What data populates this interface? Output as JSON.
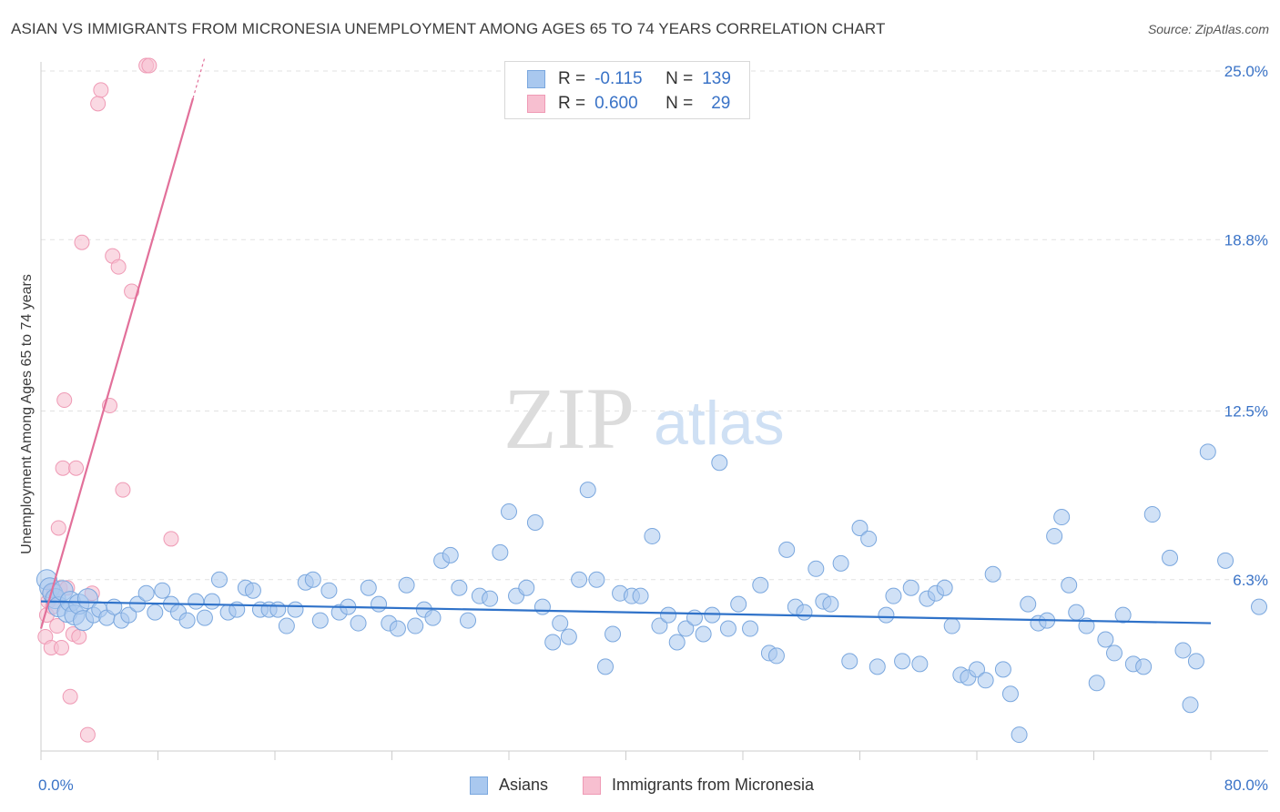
{
  "header": {
    "title": "ASIAN VS IMMIGRANTS FROM MICRONESIA UNEMPLOYMENT AMONG AGES 65 TO 74 YEARS CORRELATION CHART",
    "source": "Source: ZipAtlas.com"
  },
  "watermark": {
    "zip": "ZIP",
    "atlas": "atlas"
  },
  "colors": {
    "blue_fill": "#a9c8ef",
    "blue_stroke": "#7aa7de",
    "blue_line": "#2f72c9",
    "pink_fill": "#f7bfd0",
    "pink_stroke": "#ef9ab5",
    "pink_line": "#e2709a",
    "tick_label": "#3a73c7",
    "grid": "#e2e2e2"
  },
  "legend_top": {
    "rows": [
      {
        "r_label": "R =",
        "r_value": "-0.115",
        "n_label": "N =",
        "n_value": "139",
        "color": "#a9c8ef"
      },
      {
        "r_label": "R =",
        "r_value": "0.600",
        "n_label": "N =",
        "n_value": "29",
        "color": "#f7bfd0"
      }
    ]
  },
  "legend_bottom": {
    "items": [
      {
        "label": "Asians",
        "color": "#a9c8ef"
      },
      {
        "label": "Immigrants from Micronesia",
        "color": "#f7bfd0"
      }
    ]
  },
  "chart_data": {
    "type": "scatter",
    "title": "ASIAN VS IMMIGRANTS FROM MICRONESIA UNEMPLOYMENT AMONG AGES 65 TO 74 YEARS CORRELATION CHART",
    "xlabel": "",
    "ylabel": "Unemployment Among Ages 65 to 74 years",
    "xlim": [
      0,
      80
    ],
    "ylim": [
      0,
      25
    ],
    "x_tick_labels": [
      {
        "value": 0,
        "label": "0.0%"
      },
      {
        "value": 80,
        "label": "80.0%"
      }
    ],
    "y_tick_labels": [
      {
        "value": 6.3,
        "label": "6.3%"
      },
      {
        "value": 12.5,
        "label": "12.5%"
      },
      {
        "value": 18.8,
        "label": "18.8%"
      },
      {
        "value": 25.0,
        "label": "25.0%"
      }
    ],
    "series": [
      {
        "name": "Asians",
        "R": -0.115,
        "N": 139,
        "trend": {
          "x0": 0,
          "y0": 5.5,
          "x1": 80,
          "y1": 4.7
        },
        "points": [
          [
            0.4,
            6.3
          ],
          [
            0.6,
            6.0
          ],
          [
            0.8,
            5.8
          ],
          [
            1.0,
            5.6
          ],
          [
            1.2,
            5.3
          ],
          [
            1.5,
            5.9
          ],
          [
            1.8,
            5.1
          ],
          [
            2.0,
            5.5
          ],
          [
            2.3,
            5.0
          ],
          [
            2.6,
            5.4
          ],
          [
            2.9,
            4.8
          ],
          [
            3.2,
            5.6
          ],
          [
            3.6,
            5.0
          ],
          [
            4.0,
            5.2
          ],
          [
            4.5,
            4.9
          ],
          [
            5.0,
            5.3
          ],
          [
            5.5,
            4.8
          ],
          [
            6.0,
            5.0
          ],
          [
            6.6,
            5.4
          ],
          [
            7.2,
            5.8
          ],
          [
            7.8,
            5.1
          ],
          [
            8.3,
            5.9
          ],
          [
            8.9,
            5.4
          ],
          [
            9.4,
            5.1
          ],
          [
            10.0,
            4.8
          ],
          [
            10.6,
            5.5
          ],
          [
            11.2,
            4.9
          ],
          [
            11.7,
            5.5
          ],
          [
            12.2,
            6.3
          ],
          [
            12.8,
            5.1
          ],
          [
            13.4,
            5.2
          ],
          [
            14.0,
            6.0
          ],
          [
            14.5,
            5.9
          ],
          [
            15.0,
            5.2
          ],
          [
            15.6,
            5.2
          ],
          [
            16.2,
            5.2
          ],
          [
            16.8,
            4.6
          ],
          [
            17.4,
            5.2
          ],
          [
            18.1,
            6.2
          ],
          [
            18.6,
            6.3
          ],
          [
            19.1,
            4.8
          ],
          [
            19.7,
            5.9
          ],
          [
            20.4,
            5.1
          ],
          [
            21.0,
            5.3
          ],
          [
            21.7,
            4.7
          ],
          [
            22.4,
            6.0
          ],
          [
            23.1,
            5.4
          ],
          [
            23.8,
            4.7
          ],
          [
            24.4,
            4.5
          ],
          [
            25.0,
            6.1
          ],
          [
            25.6,
            4.6
          ],
          [
            26.2,
            5.2
          ],
          [
            26.8,
            4.9
          ],
          [
            27.4,
            7.0
          ],
          [
            28.0,
            7.2
          ],
          [
            28.6,
            6.0
          ],
          [
            29.2,
            4.8
          ],
          [
            30.0,
            5.7
          ],
          [
            30.7,
            5.6
          ],
          [
            31.4,
            7.3
          ],
          [
            32.0,
            8.8
          ],
          [
            32.5,
            5.7
          ],
          [
            33.2,
            6.0
          ],
          [
            33.8,
            8.4
          ],
          [
            34.3,
            5.3
          ],
          [
            35.0,
            4.0
          ],
          [
            35.5,
            4.7
          ],
          [
            36.1,
            4.2
          ],
          [
            36.8,
            6.3
          ],
          [
            37.4,
            9.6
          ],
          [
            38.0,
            6.3
          ],
          [
            38.6,
            3.1
          ],
          [
            39.1,
            4.3
          ],
          [
            39.6,
            5.8
          ],
          [
            40.4,
            5.7
          ],
          [
            41.0,
            5.7
          ],
          [
            41.8,
            7.9
          ],
          [
            42.3,
            4.6
          ],
          [
            42.9,
            5.0
          ],
          [
            43.5,
            4.0
          ],
          [
            44.1,
            4.5
          ],
          [
            44.7,
            4.9
          ],
          [
            45.3,
            4.3
          ],
          [
            45.9,
            5.0
          ],
          [
            46.4,
            10.6
          ],
          [
            47.0,
            4.5
          ],
          [
            47.7,
            5.4
          ],
          [
            48.5,
            4.5
          ],
          [
            49.2,
            6.1
          ],
          [
            49.8,
            3.6
          ],
          [
            50.3,
            3.5
          ],
          [
            51.0,
            7.4
          ],
          [
            51.6,
            5.3
          ],
          [
            52.2,
            5.1
          ],
          [
            53.0,
            6.7
          ],
          [
            53.5,
            5.5
          ],
          [
            54.0,
            5.4
          ],
          [
            54.7,
            6.9
          ],
          [
            55.3,
            3.3
          ],
          [
            56.0,
            8.2
          ],
          [
            56.6,
            7.8
          ],
          [
            57.2,
            3.1
          ],
          [
            57.8,
            5.0
          ],
          [
            58.3,
            5.7
          ],
          [
            58.9,
            3.3
          ],
          [
            59.5,
            6.0
          ],
          [
            60.1,
            3.2
          ],
          [
            60.6,
            5.6
          ],
          [
            61.2,
            5.8
          ],
          [
            61.8,
            6.0
          ],
          [
            62.3,
            4.6
          ],
          [
            62.9,
            2.8
          ],
          [
            63.4,
            2.7
          ],
          [
            64.0,
            3.0
          ],
          [
            64.6,
            2.6
          ],
          [
            65.1,
            6.5
          ],
          [
            65.8,
            3.0
          ],
          [
            66.3,
            2.1
          ],
          [
            66.9,
            0.6
          ],
          [
            67.5,
            5.4
          ],
          [
            68.2,
            4.7
          ],
          [
            68.8,
            4.8
          ],
          [
            69.3,
            7.9
          ],
          [
            69.8,
            8.6
          ],
          [
            70.3,
            6.1
          ],
          [
            70.8,
            5.1
          ],
          [
            71.5,
            4.6
          ],
          [
            72.2,
            2.5
          ],
          [
            72.8,
            4.1
          ],
          [
            73.4,
            3.6
          ],
          [
            74.0,
            5.0
          ],
          [
            74.7,
            3.2
          ],
          [
            75.4,
            3.1
          ],
          [
            76.0,
            8.7
          ],
          [
            77.2,
            7.1
          ],
          [
            78.1,
            3.7
          ],
          [
            78.6,
            1.7
          ],
          [
            79.0,
            3.3
          ],
          [
            79.8,
            11.0
          ],
          [
            81.0,
            7.0
          ],
          [
            83.3,
            5.3
          ]
        ]
      },
      {
        "name": "Immigrants from Micronesia",
        "R": 0.6,
        "N": 29,
        "trend": {
          "x0": 0,
          "y0": 4.5,
          "x1": 10.4,
          "y1": 24.0
        },
        "points": [
          [
            0.3,
            4.2
          ],
          [
            0.4,
            5.0
          ],
          [
            0.5,
            5.5
          ],
          [
            0.6,
            5.8
          ],
          [
            0.7,
            3.8
          ],
          [
            0.8,
            5.3
          ],
          [
            0.9,
            5.9
          ],
          [
            1.1,
            4.6
          ],
          [
            1.2,
            8.2
          ],
          [
            1.3,
            6.0
          ],
          [
            1.4,
            3.8
          ],
          [
            1.5,
            10.4
          ],
          [
            1.6,
            12.9
          ],
          [
            1.8,
            6.0
          ],
          [
            2.0,
            2.0
          ],
          [
            2.2,
            4.3
          ],
          [
            2.4,
            10.4
          ],
          [
            2.6,
            4.2
          ],
          [
            2.8,
            18.7
          ],
          [
            3.2,
            0.6
          ],
          [
            3.5,
            5.8
          ],
          [
            3.9,
            23.8
          ],
          [
            4.1,
            24.3
          ],
          [
            4.7,
            12.7
          ],
          [
            4.9,
            18.2
          ],
          [
            5.3,
            17.8
          ],
          [
            5.6,
            9.6
          ],
          [
            6.2,
            16.9
          ],
          [
            7.2,
            25.2
          ],
          [
            7.4,
            25.2
          ],
          [
            8.9,
            7.8
          ]
        ]
      }
    ]
  }
}
